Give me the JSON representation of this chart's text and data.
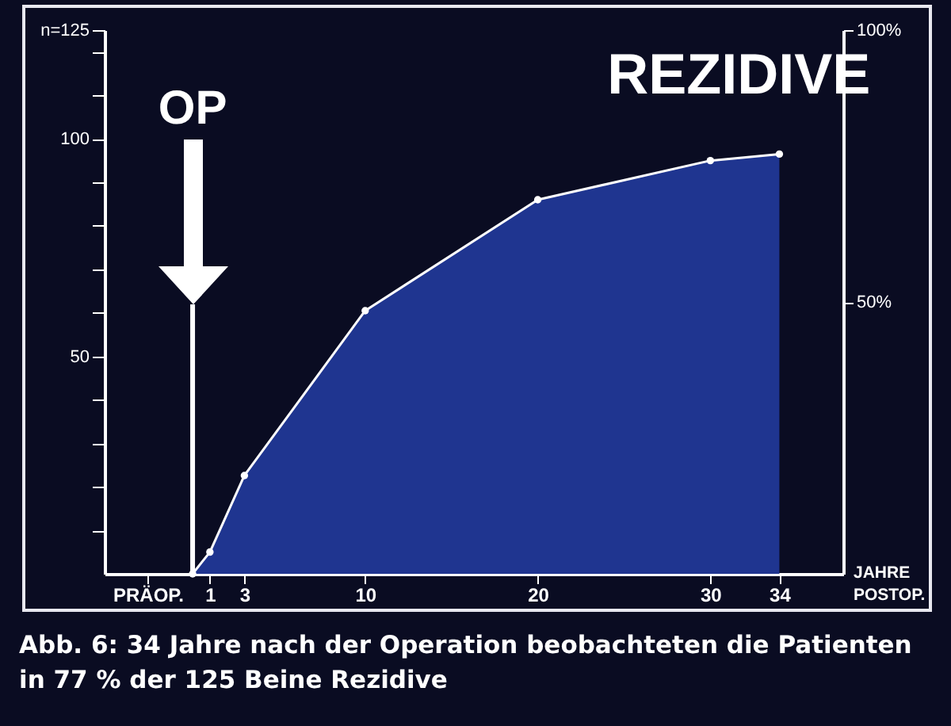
{
  "chart_data": {
    "type": "area",
    "title": "REZIDIVE",
    "xlabel": "JAHRE POSTOP.",
    "x": [
      0,
      1,
      3,
      10,
      20,
      30,
      34
    ],
    "series": [
      {
        "color": "#1f3590",
        "values": [
          0,
          5,
          22.6,
          60.5,
          86,
          95,
          96.5
        ]
      }
    ],
    "xlim": [
      -5.1,
      37.7
    ],
    "xticks": [
      {
        "value": -2.6,
        "label": "PRÄOP."
      },
      1,
      3,
      10,
      20,
      30,
      34
    ],
    "ylim": [
      0,
      125
    ],
    "yticks": [
      {
        "value": 10,
        "label": null
      },
      {
        "value": 20,
        "label": null
      },
      {
        "value": 30,
        "label": null
      },
      {
        "value": 40,
        "label": null
      },
      50,
      {
        "value": 60,
        "label": null
      },
      {
        "value": 70,
        "label": null
      },
      {
        "value": 80,
        "label": null
      },
      {
        "value": 90,
        "label": null
      },
      100,
      {
        "value": 110,
        "label": null
      },
      {
        "value": 120,
        "label": null
      },
      {
        "value": 125,
        "label": "n=125"
      }
    ],
    "y2lim": [
      0,
      100
    ],
    "y2ticks": [
      {
        "value": 50,
        "label": "50%"
      },
      {
        "value": 100,
        "label": "100%"
      }
    ],
    "ref_lines": [
      {
        "axis": "x",
        "value": 0,
        "label": "OP",
        "color": "#ffffff"
      }
    ],
    "annotations": [
      "Abb. 6: 34 Jahre nach der Operation beobachteten die Patienten in 77 % der 125 Beine Rezidive"
    ],
    "marker": "circle",
    "grid": false
  }
}
